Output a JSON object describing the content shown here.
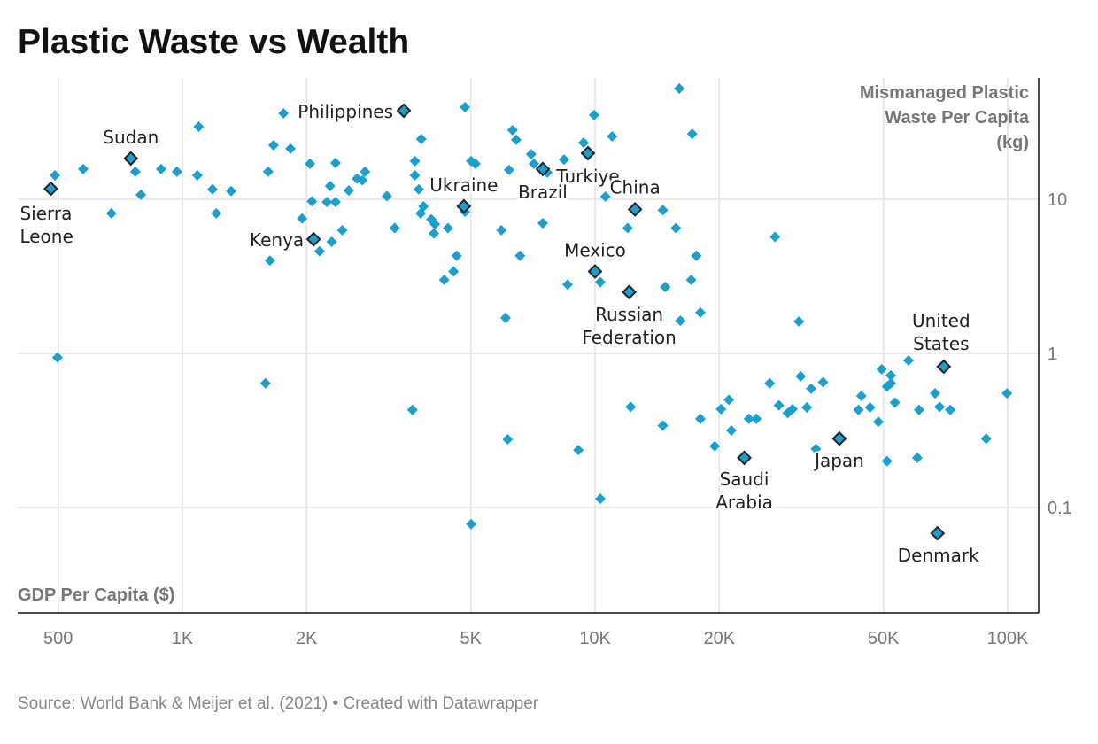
{
  "chart_data": {
    "type": "scatter",
    "title": "Plastic Waste vs Wealth",
    "xlabel": "GDP Per Capita ($)",
    "ylabel_lines": [
      "Mismanaged Plastic",
      "Waste Per Capita",
      "(kg)"
    ],
    "xscale": "log",
    "yscale": "log",
    "xlim": [
      400,
      119000
    ],
    "ylim": [
      0.021,
      61
    ],
    "grid": true,
    "xticks": [
      {
        "v": 500,
        "label": "500"
      },
      {
        "v": 1000,
        "label": "1K"
      },
      {
        "v": 2000,
        "label": "2K"
      },
      {
        "v": 5000,
        "label": "5K"
      },
      {
        "v": 10000,
        "label": "10K"
      },
      {
        "v": 20000,
        "label": "20K"
      },
      {
        "v": 50000,
        "label": "50K"
      },
      {
        "v": 100000,
        "label": "100K"
      }
    ],
    "yticks": [
      {
        "v": 10,
        "label": "10"
      },
      {
        "v": 1,
        "label": "1"
      },
      {
        "v": 0.1,
        "label": "0.1"
      }
    ],
    "colors": {
      "point": "#1a9fcf",
      "highlight_stroke": "#222222"
    },
    "highlighted": [
      {
        "label": "Sierra Leone",
        "lines": [
          "Sierra",
          "Leone"
        ],
        "x": 480,
        "y": 11.7
      },
      {
        "label": "Sudan",
        "lines": [
          "Sudan"
        ],
        "x": 750,
        "y": 18.4
      },
      {
        "label": "Philippines",
        "lines": [
          "Philippines"
        ],
        "x": 3440,
        "y": 37.6
      },
      {
        "label": "Kenya",
        "lines": [
          "Kenya"
        ],
        "x": 2080,
        "y": 5.5
      },
      {
        "label": "Ukraine",
        "lines": [
          "Ukraine"
        ],
        "x": 4810,
        "y": 9.0
      },
      {
        "label": "Brazil",
        "lines": [
          "Brazil"
        ],
        "x": 7470,
        "y": 15.7
      },
      {
        "label": "Turkiye",
        "lines": [
          "Turkiye"
        ],
        "x": 9610,
        "y": 19.9
      },
      {
        "label": "China",
        "lines": [
          "China"
        ],
        "x": 12500,
        "y": 8.6
      },
      {
        "label": "Mexico",
        "lines": [
          "Mexico"
        ],
        "x": 10000,
        "y": 3.4
      },
      {
        "label": "Russian Federation",
        "lines": [
          "Russian",
          "Federation"
        ],
        "x": 12100,
        "y": 2.5
      },
      {
        "label": "United States",
        "lines": [
          "United",
          "States"
        ],
        "x": 70000,
        "y": 0.82
      },
      {
        "label": "Japan",
        "lines": [
          "Japan"
        ],
        "x": 39100,
        "y": 0.28
      },
      {
        "label": "Saudi Arabia",
        "lines": [
          "Saudi",
          "Arabia"
        ],
        "x": 23000,
        "y": 0.21
      },
      {
        "label": "Denmark",
        "lines": [
          "Denmark"
        ],
        "x": 67600,
        "y": 0.068
      }
    ],
    "points": [
      [
        491,
        14.3
      ],
      [
        575,
        15.7
      ],
      [
        769,
        15.1
      ],
      [
        793,
        10.7
      ],
      [
        888,
        15.7
      ],
      [
        970,
        15.1
      ],
      [
        1095,
        29.6
      ],
      [
        1087,
        14.3
      ],
      [
        1183,
        11.6
      ],
      [
        1312,
        11.3
      ],
      [
        673,
        8.1
      ],
      [
        1208,
        8.1
      ],
      [
        1614,
        15.1
      ],
      [
        1663,
        22.4
      ],
      [
        1828,
        21.3
      ],
      [
        1758,
        36.1
      ],
      [
        2038,
        17.0
      ],
      [
        2350,
        17.2
      ],
      [
        2280,
        12.2
      ],
      [
        2530,
        11.4
      ],
      [
        2650,
        13.6
      ],
      [
        2770,
        15.1
      ],
      [
        2730,
        13.3
      ],
      [
        3130,
        10.5
      ],
      [
        2060,
        9.7
      ],
      [
        2240,
        9.6
      ],
      [
        2350,
        9.6
      ],
      [
        1950,
        7.5
      ],
      [
        2440,
        6.3
      ],
      [
        2300,
        5.3
      ],
      [
        2150,
        4.6
      ],
      [
        1630,
        4.0
      ],
      [
        498,
        0.94
      ],
      [
        1590,
        0.64
      ],
      [
        16000,
        52.3
      ],
      [
        9950,
        35.2
      ],
      [
        17200,
        26.6
      ],
      [
        4840,
        39.6
      ],
      [
        3790,
        24.6
      ],
      [
        6310,
        28.1
      ],
      [
        6440,
        24.3
      ],
      [
        9380,
        23.3
      ],
      [
        11000,
        25.6
      ],
      [
        3660,
        17.7
      ],
      [
        5010,
        17.7
      ],
      [
        5130,
        17.0
      ],
      [
        7000,
        19.6
      ],
      [
        7110,
        17.0
      ],
      [
        8410,
        18.1
      ],
      [
        6190,
        15.5
      ],
      [
        7660,
        14.9
      ],
      [
        3660,
        14.3
      ],
      [
        3740,
        11.6
      ],
      [
        10600,
        10.4
      ],
      [
        3840,
        9.0
      ],
      [
        3780,
        8.1
      ],
      [
        4010,
        7.4
      ],
      [
        4090,
        6.9
      ],
      [
        4070,
        6.0
      ],
      [
        4400,
        6.5
      ],
      [
        3270,
        6.5
      ],
      [
        4840,
        8.3
      ],
      [
        5930,
        6.3
      ],
      [
        7470,
        7.0
      ],
      [
        12000,
        6.5
      ],
      [
        14600,
        8.5
      ],
      [
        15700,
        6.5
      ],
      [
        4620,
        4.3
      ],
      [
        6580,
        4.3
      ],
      [
        17600,
        4.3
      ],
      [
        4540,
        3.4
      ],
      [
        4310,
        3.0
      ],
      [
        8580,
        2.8
      ],
      [
        10300,
        2.9
      ],
      [
        14800,
        2.7
      ],
      [
        17100,
        3.0
      ],
      [
        6070,
        1.7
      ],
      [
        16100,
        1.63
      ],
      [
        18000,
        1.84
      ],
      [
        31200,
        1.61
      ],
      [
        27300,
        5.7
      ],
      [
        3610,
        0.43
      ],
      [
        5010,
        0.078
      ],
      [
        6140,
        0.277
      ],
      [
        9110,
        0.236
      ],
      [
        10300,
        0.114
      ],
      [
        12200,
        0.45
      ],
      [
        14600,
        0.34
      ],
      [
        18000,
        0.376
      ],
      [
        20200,
        0.435
      ],
      [
        21100,
        0.5
      ],
      [
        21400,
        0.316
      ],
      [
        19500,
        0.25
      ],
      [
        23600,
        0.376
      ],
      [
        24600,
        0.376
      ],
      [
        26500,
        0.64
      ],
      [
        27900,
        0.46
      ],
      [
        29300,
        0.41
      ],
      [
        30100,
        0.435
      ],
      [
        32600,
        0.446
      ],
      [
        31500,
        0.71
      ],
      [
        33400,
        0.59
      ],
      [
        35700,
        0.65
      ],
      [
        44200,
        0.53
      ],
      [
        43500,
        0.43
      ],
      [
        46400,
        0.446
      ],
      [
        48600,
        0.36
      ],
      [
        49500,
        0.79
      ],
      [
        52100,
        0.72
      ],
      [
        51000,
        0.61
      ],
      [
        52100,
        0.64
      ],
      [
        53300,
        0.48
      ],
      [
        57500,
        0.9
      ],
      [
        61000,
        0.43
      ],
      [
        66700,
        0.55
      ],
      [
        68400,
        0.45
      ],
      [
        72600,
        0.43
      ],
      [
        99600,
        0.55
      ],
      [
        88700,
        0.28
      ],
      [
        51000,
        0.2
      ],
      [
        60400,
        0.21
      ],
      [
        34300,
        0.24
      ]
    ]
  },
  "footer": {
    "source": "Source: World Bank & Meijer et al. (2021) • Created with Datawrapper"
  }
}
